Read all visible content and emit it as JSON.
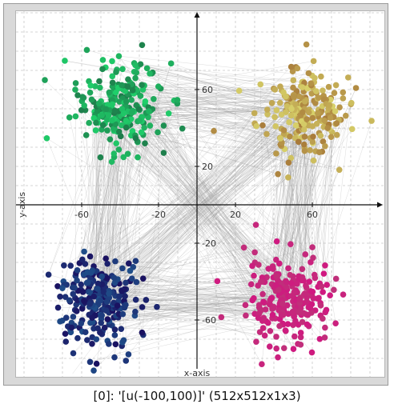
{
  "window": {
    "caption": "[0]: '[u(-100,100)]' (512x512x1x3)"
  },
  "chart_data": {
    "type": "scatter",
    "title": "",
    "xlabel": "x-axis",
    "ylabel": "y-axis",
    "xlim": [
      -92,
      92
    ],
    "ylim": [
      -92,
      92
    ],
    "x_ticks": [
      -60,
      -20,
      20,
      60
    ],
    "y_ticks": [
      60,
      20,
      -20,
      -60
    ],
    "grid": true,
    "grid_step": 20,
    "clusters": [
      {
        "center": [
          -40,
          52
        ],
        "spread": 15,
        "count": 230,
        "color_from": "#1fcf6a",
        "color_to": "#1e7a4a"
      },
      {
        "center": [
          54,
          48
        ],
        "spread": 15,
        "count": 230,
        "color_from": "#d8d26a",
        "color_to": "#a87a3a"
      },
      {
        "center": [
          -52,
          -50
        ],
        "spread": 15,
        "count": 260,
        "color_from": "#1f4f8a",
        "color_to": "#1a1060"
      },
      {
        "center": [
          48,
          -50
        ],
        "spread": 15,
        "count": 230,
        "color_from": "#c0307a",
        "color_to": "#d01880"
      }
    ],
    "edge_color": "#9a9a9a",
    "edge_count": 700
  }
}
